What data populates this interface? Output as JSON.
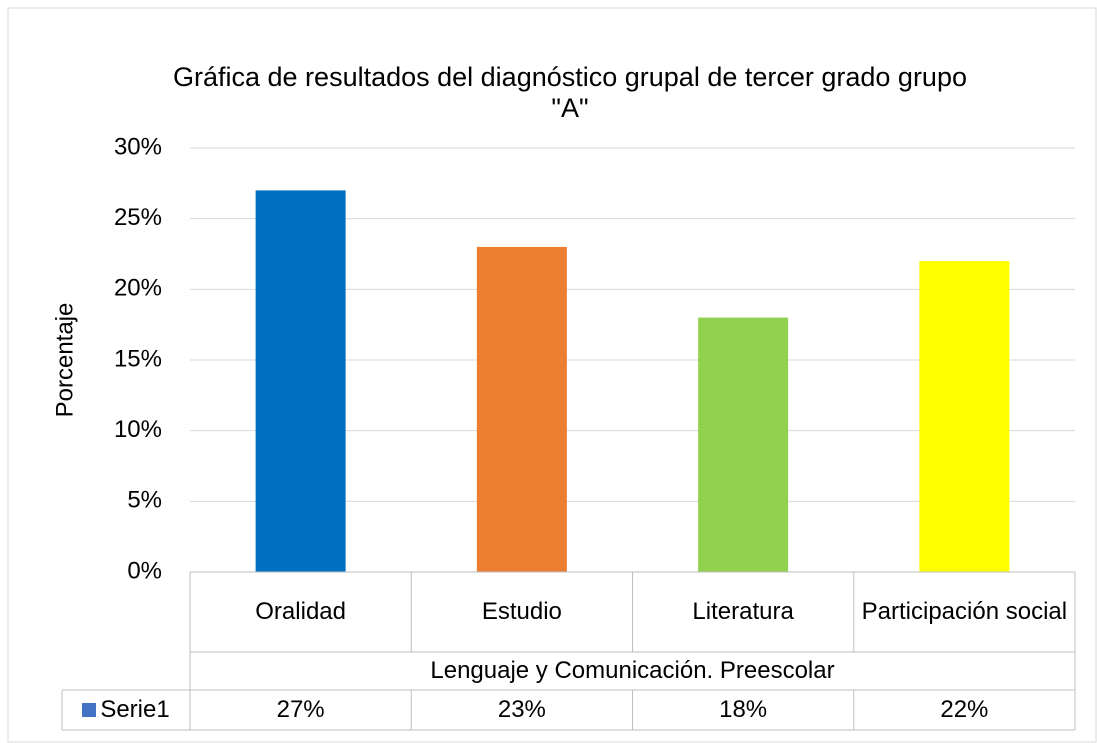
{
  "chart_data": {
    "type": "bar",
    "title": "Gráfica de resultados del diagnóstico grupal de tercer grado grupo \"A\"",
    "y_label": "Porcentaje",
    "categories": [
      "Oralidad",
      "Estudio",
      "Literatura",
      "Participación social"
    ],
    "category_group": "Lenguaje y Comunicación. Preescolar",
    "series": [
      {
        "name": "Serie1",
        "color": "#4472c4",
        "point_colors": [
          "#0070c0",
          "#ed7d31",
          "#92d050",
          "#ffff00"
        ],
        "values": [
          27,
          23,
          18,
          22
        ],
        "value_labels": [
          "27%",
          "23%",
          "18%",
          "22%"
        ]
      }
    ],
    "ylim": [
      0,
      30
    ],
    "yticks": [
      {
        "value": 0,
        "label": "0%"
      },
      {
        "value": 5,
        "label": "5%"
      },
      {
        "value": 10,
        "label": "10%"
      },
      {
        "value": 15,
        "label": "15%"
      },
      {
        "value": 20,
        "label": "20%"
      },
      {
        "value": 25,
        "label": "25%"
      },
      {
        "value": 30,
        "label": "30%"
      }
    ],
    "grid": true,
    "data_table": true
  }
}
